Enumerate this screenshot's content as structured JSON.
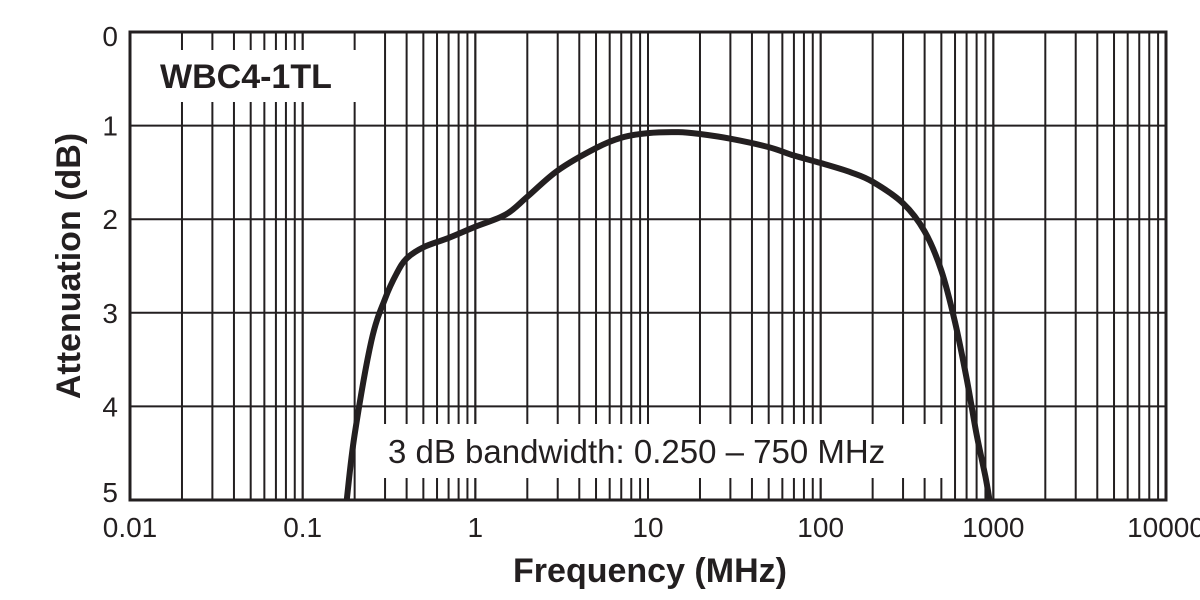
{
  "chart_data": {
    "type": "line",
    "title": "WBC4-1TL",
    "xlabel": "Frequency (MHz)",
    "ylabel": "Attenuation (dB)",
    "x_scale": "log",
    "xlim": [
      0.01,
      10000
    ],
    "ylim": [
      0,
      5
    ],
    "y_inverted": true,
    "grid": true,
    "x_tick_labels": [
      "0.01",
      "0.1",
      "1",
      "10",
      "100",
      "1000",
      "10000"
    ],
    "y_tick_labels": [
      "0",
      "1",
      "2",
      "3",
      "4",
      "5"
    ],
    "annotation": "3 dB bandwidth: 0.250 – 750 MHz",
    "series": [
      {
        "x": [
          0.18,
          0.2,
          0.25,
          0.3,
          0.35,
          0.4,
          0.5,
          0.7,
          1,
          1.5,
          2,
          3,
          5,
          7,
          10,
          15,
          20,
          30,
          50,
          70,
          100,
          150,
          200,
          300,
          400,
          500,
          600,
          700,
          800,
          900,
          950
        ],
        "y": [
          5.0,
          4.3,
          3.3,
          2.85,
          2.58,
          2.42,
          2.3,
          2.2,
          2.08,
          1.95,
          1.76,
          1.48,
          1.24,
          1.13,
          1.08,
          1.07,
          1.09,
          1.14,
          1.23,
          1.32,
          1.4,
          1.5,
          1.6,
          1.83,
          2.13,
          2.55,
          3.1,
          3.7,
          4.3,
          4.75,
          5.0
        ]
      }
    ]
  }
}
